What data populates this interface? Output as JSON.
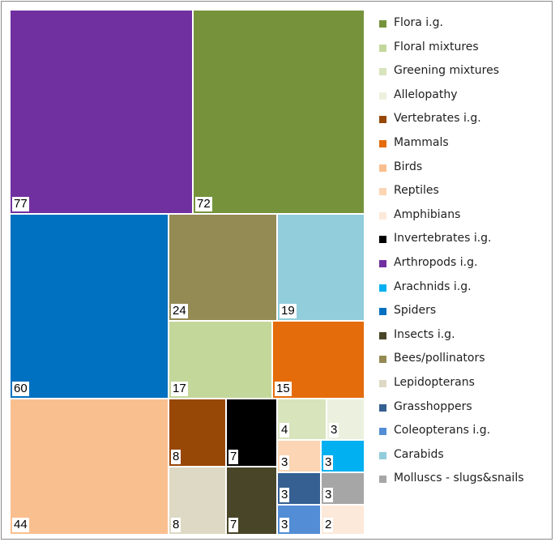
{
  "chart_data": {
    "type": "treemap",
    "categories": [
      "Flora i.g.",
      "Floral mixtures",
      "Greening mixtures",
      "Allelopathy",
      "Vertebrates i.g.",
      "Mammals",
      "Birds",
      "Reptiles",
      "Amphibians",
      "Invertebrates i.g.",
      "Arthropods i.g.",
      "Arachnids i.g.",
      "Spiders",
      "Insects i.g.",
      "Bees/pollinators",
      "Lepidopterans",
      "Grasshoppers",
      "Coleopterans i.g.",
      "Carabids",
      "Molluscs - slugs&snails"
    ],
    "colors": [
      "#76933c",
      "#c4d79b",
      "#d8e4bc",
      "#ebf1de",
      "#974706",
      "#e46c0a",
      "#fabf8f",
      "#fcd5b4",
      "#fde9d9",
      "#000000",
      "#7030a0",
      "#00b0f0",
      "#0070c0",
      "#494529",
      "#948a54",
      "#ddd9c4",
      "#366092",
      "#538dd5",
      "#92cddc",
      "#a6a6a6"
    ],
    "tiles": [
      {
        "category": "Arthropods i.g.",
        "value": 77,
        "label": "77"
      },
      {
        "category": "Flora i.g.",
        "value": 72,
        "label": "72"
      },
      {
        "category": "Spiders",
        "value": 60,
        "label": "60"
      },
      {
        "category": "Bees/pollinators",
        "value": 24,
        "label": "24"
      },
      {
        "category": "Carabids",
        "value": 19,
        "label": "19"
      },
      {
        "category": "Floral mixtures",
        "value": 17,
        "label": "17"
      },
      {
        "category": "Mammals",
        "value": 15,
        "label": "15"
      },
      {
        "category": "Birds",
        "value": 44,
        "label": "44"
      },
      {
        "category": "Vertebrates i.g.",
        "value": 8,
        "label": "8"
      },
      {
        "category": "Invertebrates i.g.",
        "value": 7,
        "label": "7"
      },
      {
        "category": "Greening mixtures",
        "value": 4,
        "label": "4"
      },
      {
        "category": "Allelopathy",
        "value": 3,
        "label": "3"
      },
      {
        "category": "Reptiles",
        "value": 3,
        "label": "3"
      },
      {
        "category": "Arachnids i.g.",
        "value": 3,
        "label": "3"
      },
      {
        "category": "Lepidopterans",
        "value": 8,
        "label": "8"
      },
      {
        "category": "Insects i.g.",
        "value": 7,
        "label": "7"
      },
      {
        "category": "Grasshoppers",
        "value": 3,
        "label": "3"
      },
      {
        "category": "Molluscs - slugs&snails",
        "value": 3,
        "label": "3"
      },
      {
        "category": "Coleopterans i.g.",
        "value": 3,
        "label": "3"
      },
      {
        "category": "Amphibians",
        "value": 2,
        "label": "2"
      }
    ],
    "legend_position": "right"
  }
}
